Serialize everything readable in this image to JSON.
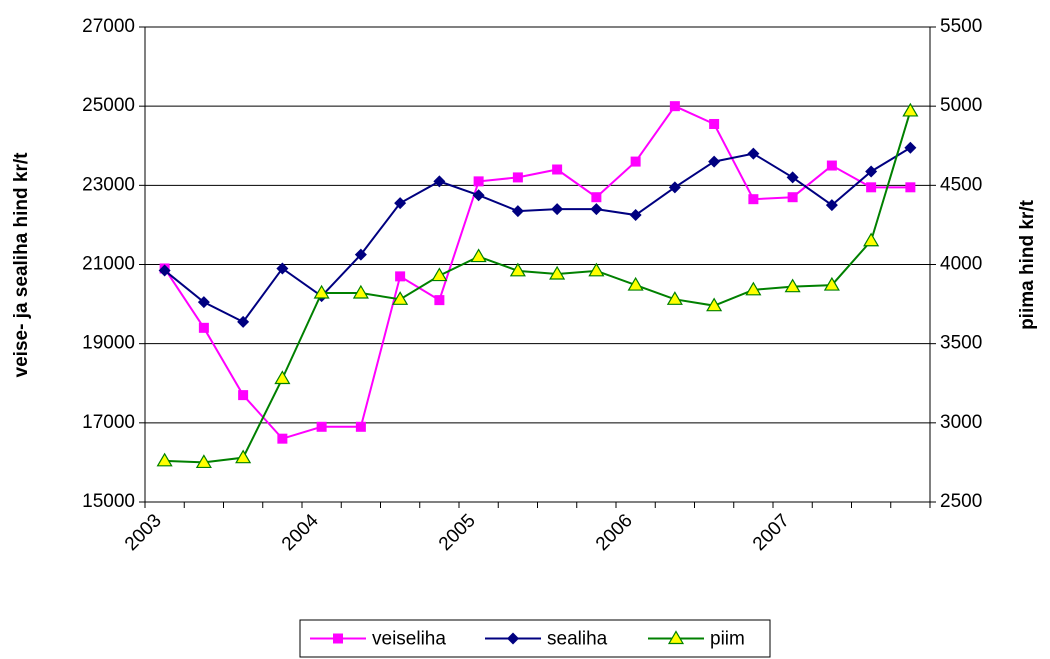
{
  "chart_data": {
    "type": "line",
    "y_label": "veise- ja sealiha hind kr/t",
    "y2_label": "piima hind kr/t",
    "categories": [
      "2003",
      null,
      null,
      null,
      "2004",
      null,
      null,
      null,
      "2005",
      null,
      null,
      null,
      "2006",
      null,
      null,
      null,
      "2007",
      null,
      null,
      null
    ],
    "ylim": [
      15000,
      27000
    ],
    "yticks": [
      15000,
      17000,
      19000,
      21000,
      23000,
      25000,
      27000
    ],
    "y2lim": [
      2500,
      5500
    ],
    "y2ticks": [
      2500,
      3000,
      3500,
      4000,
      4500,
      5000,
      5500
    ],
    "grid": true,
    "legend": "bottom",
    "series": [
      {
        "name": "veiseliha",
        "color": "#ff00ff",
        "marker": "square",
        "values": [
          20900,
          19400,
          17700,
          16600,
          16900,
          16900,
          20700,
          20100,
          23100,
          23200,
          23400,
          22700,
          23600,
          25000,
          24550,
          22650,
          22700,
          23500,
          22950,
          22950
        ]
      },
      {
        "name": "sealiha",
        "color": "#000080",
        "marker": "diamond",
        "values": [
          20850,
          20050,
          19550,
          20900,
          20200,
          21250,
          22550,
          23100,
          22750,
          22350,
          22400,
          22400,
          22250,
          22950,
          23600,
          23800,
          23200,
          22500,
          23350,
          23950
        ]
      },
      {
        "name": "piim",
        "color": "#008000",
        "marker": "triangle",
        "marker_fill": "#ffff00",
        "axis": "y2",
        "values": [
          2760,
          2750,
          2780,
          3280,
          3820,
          3820,
          3780,
          3930,
          4050,
          3960,
          3940,
          3960,
          3870,
          3780,
          3740,
          3840,
          3860,
          3870,
          4150,
          4970
        ]
      }
    ]
  }
}
